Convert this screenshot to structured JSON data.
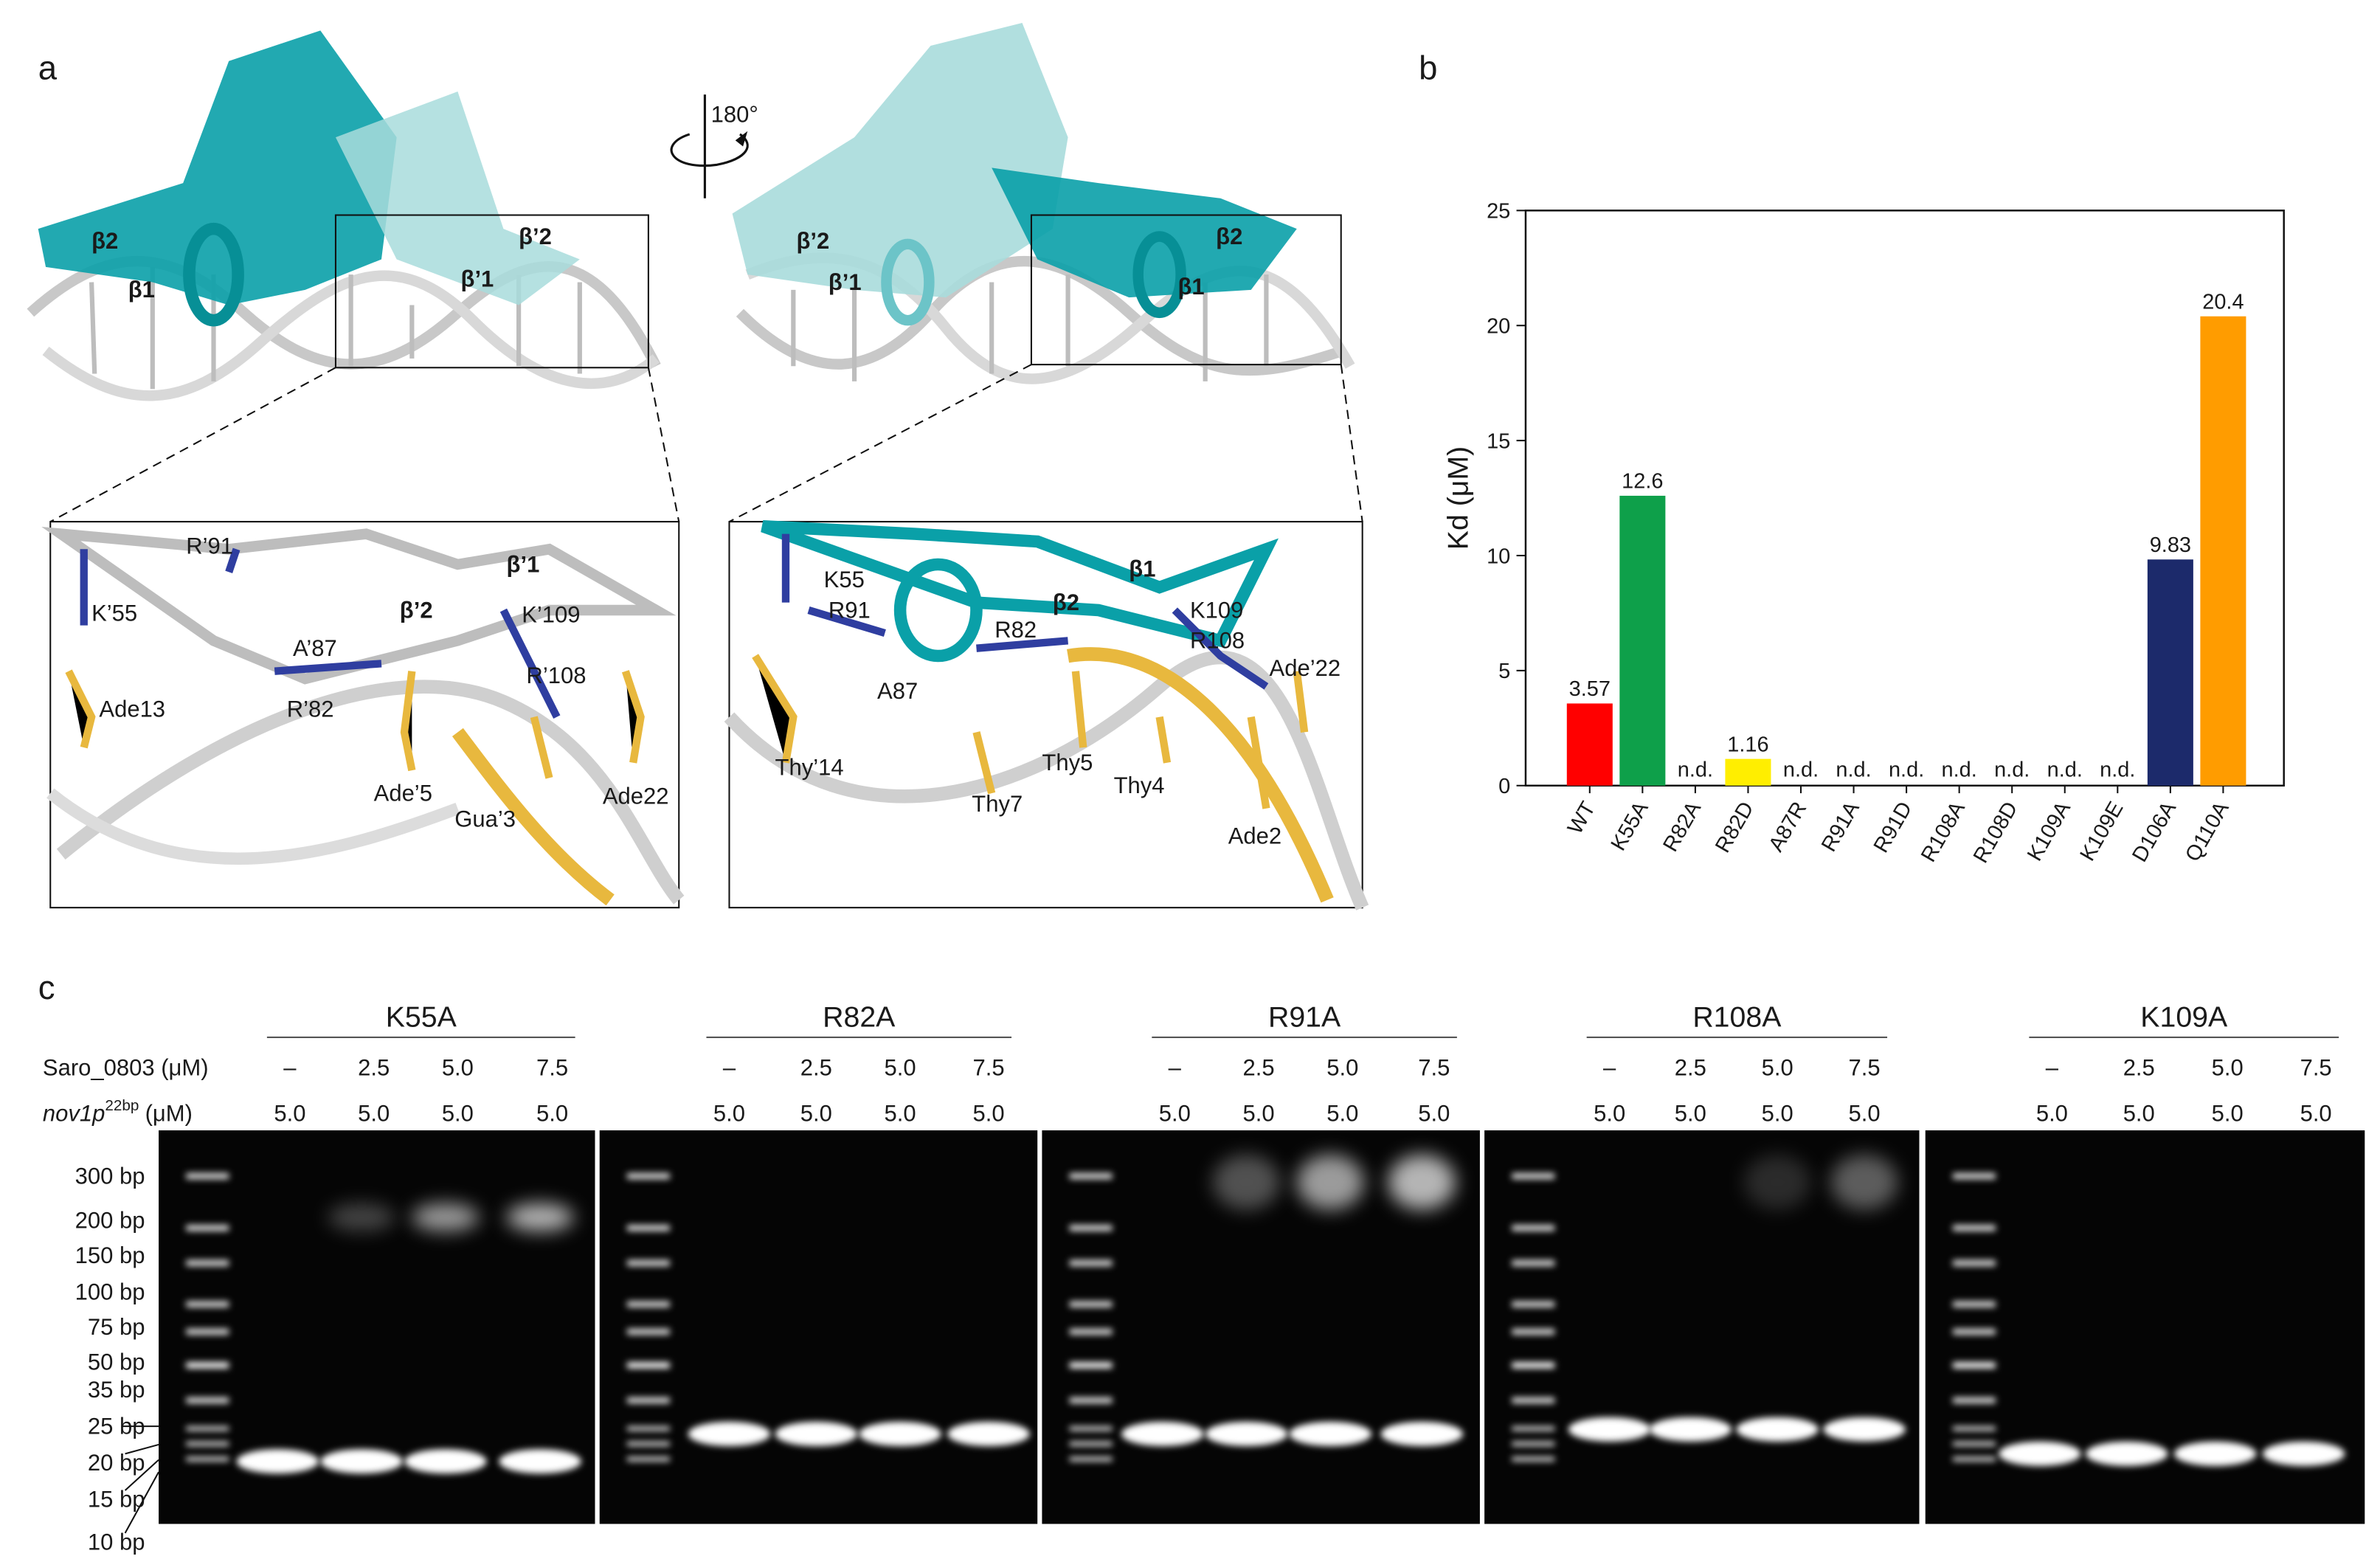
{
  "panel_labels": [
    "a",
    "b",
    "c"
  ],
  "panel_a": {
    "rotation": "180°",
    "top_left": [
      "β2",
      "β1",
      "β’2",
      "β’1"
    ],
    "top_right": [
      "β’2",
      "β’1",
      "β2",
      "β1"
    ],
    "inset_left": [
      "R’91",
      "K’55",
      "A’87",
      "β’2",
      "β’1",
      "K’109",
      "R’108",
      "Ade13",
      "R’82",
      "Ade’5",
      "Gua’3",
      "Ade22"
    ],
    "inset_right": [
      "K55",
      "R91",
      "β2",
      "β1",
      "K109",
      "R108",
      "R82",
      "Ade’22",
      "A87",
      "Thy’14",
      "Thy5",
      "Thy4",
      "Thy7",
      "Ade2"
    ]
  },
  "chart_data": {
    "type": "bar",
    "y_label": "Kd (μM)",
    "categories": [
      "WT",
      "K55A",
      "R82A",
      "R82D",
      "A87R",
      "R91A",
      "R91D",
      "R108A",
      "R108D",
      "K109A",
      "K109E",
      "D106A",
      "Q110A"
    ],
    "values": [
      3.57,
      12.6,
      null,
      1.16,
      null,
      null,
      null,
      null,
      null,
      null,
      null,
      9.83,
      20.4
    ],
    "value_labels": [
      "3.57",
      "12.6",
      "n.d.",
      "1.16",
      "n.d.",
      "n.d.",
      "n.d.",
      "n.d.",
      "n.d.",
      "n.d.",
      "n.d.",
      "9.83",
      "20.4"
    ],
    "colors": [
      "#ff0000",
      "#0ea04a",
      null,
      "#ffee00",
      null,
      null,
      null,
      null,
      null,
      null,
      null,
      "#1c2a6b",
      "#ff9c00"
    ],
    "ylim": [
      0,
      25
    ],
    "yticks": [
      0,
      5,
      10,
      15,
      20,
      25
    ]
  },
  "panel_c": {
    "saro_label": "Saro_0803 (μM)",
    "dna_label": {
      "name": "nov1p",
      "superscript": "22bp",
      "unit": "(μM)"
    },
    "ladder_labels": [
      "300 bp",
      "200 bp",
      "150 bp",
      "100 bp",
      "75 bp",
      "50 bp",
      "35 bp",
      "25 bp",
      "20 bp",
      "15 bp",
      "10 bp"
    ],
    "gels": [
      {
        "name": "K55A",
        "saro": [
          "–",
          "2.5",
          "5.0",
          "7.5"
        ],
        "dna": [
          "5.0",
          "5.0",
          "5.0",
          "5.0"
        ]
      },
      {
        "name": "R82A",
        "saro": [
          "–",
          "2.5",
          "5.0",
          "7.5"
        ],
        "dna": [
          "5.0",
          "5.0",
          "5.0",
          "5.0"
        ]
      },
      {
        "name": "R91A",
        "saro": [
          "–",
          "2.5",
          "5.0",
          "7.5"
        ],
        "dna": [
          "5.0",
          "5.0",
          "5.0",
          "5.0"
        ]
      },
      {
        "name": "R108A",
        "saro": [
          "–",
          "2.5",
          "5.0",
          "7.5"
        ],
        "dna": [
          "5.0",
          "5.0",
          "5.0",
          "5.0"
        ]
      },
      {
        "name": "K109A",
        "saro": [
          "–",
          "2.5",
          "5.0",
          "7.5"
        ],
        "dna": [
          "5.0",
          "5.0",
          "5.0",
          "5.0"
        ]
      }
    ]
  }
}
